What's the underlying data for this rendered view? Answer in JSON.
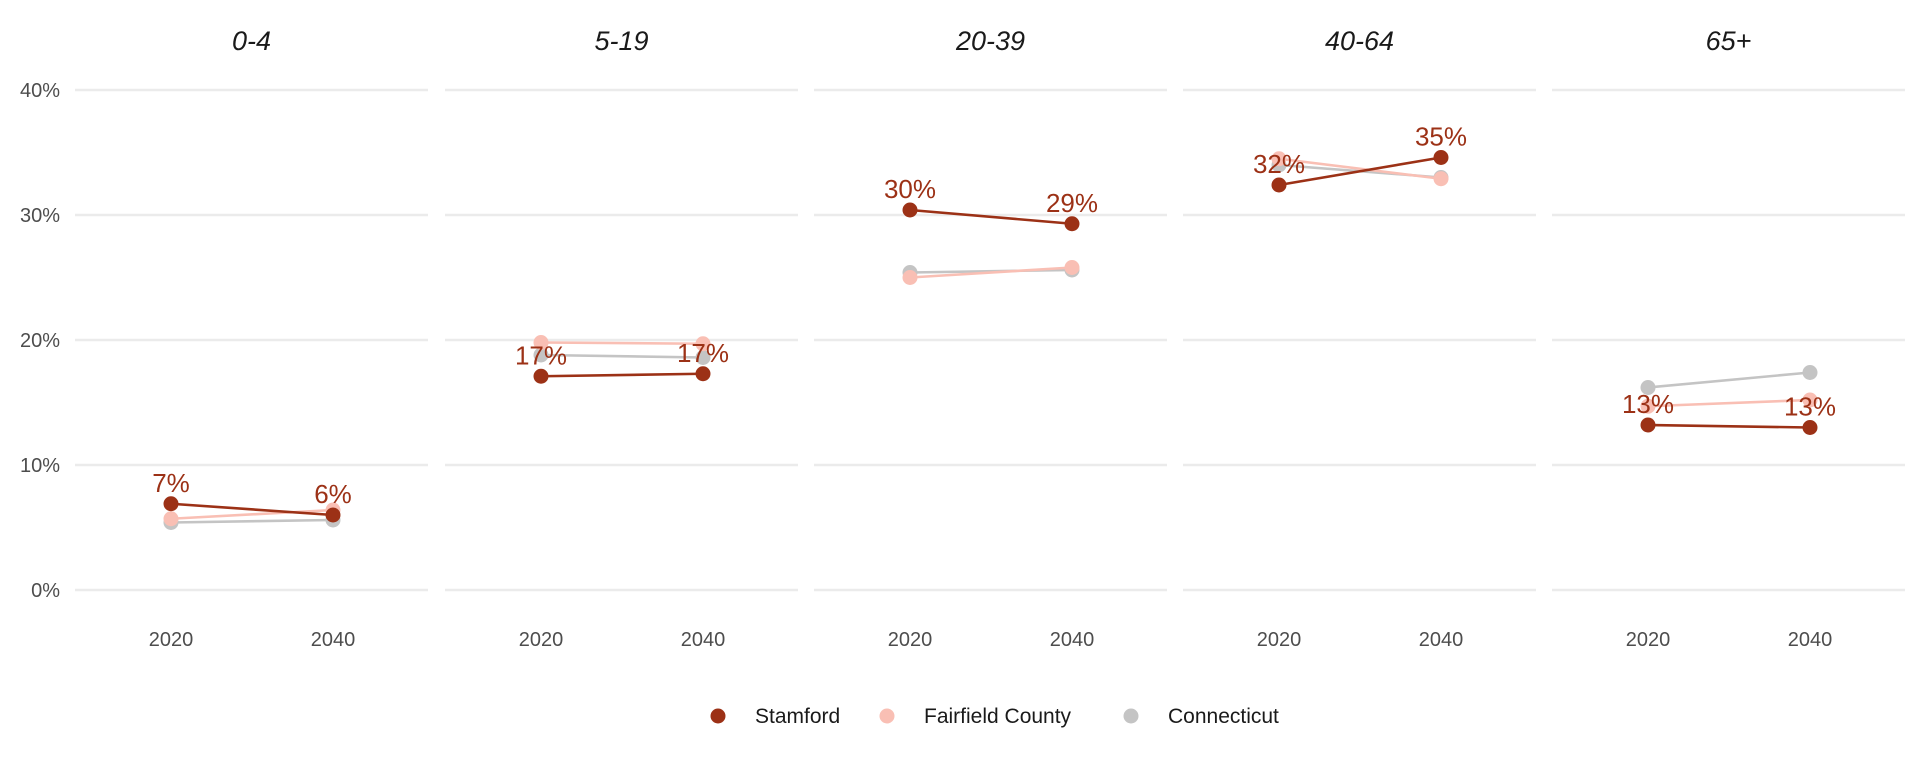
{
  "colors": {
    "stamford": "#9c3116",
    "fairfield": "#f9bfb4",
    "connecticut": "#c4c4c4",
    "grid": "#ebebeb",
    "tick_text": "#4d4d4d",
    "title_text": "#1a1a1a"
  },
  "chart_data": {
    "type": "line",
    "layout": "small-multiples",
    "ylim": [
      0,
      40
    ],
    "y_ticks": [
      "0%",
      "10%",
      "20%",
      "30%",
      "40%"
    ],
    "y_tick_values": [
      0,
      10,
      20,
      30,
      40
    ],
    "x": [
      "2020",
      "2040"
    ],
    "grid": true,
    "legend_position": "bottom",
    "labelled_series": "Stamford",
    "series_names": [
      "Stamford",
      "Fairfield County",
      "Connecticut"
    ],
    "facets": [
      {
        "title": "0-4",
        "series": [
          {
            "name": "Stamford",
            "values": [
              6.9,
              6.0
            ],
            "labels": [
              "7%",
              "6%"
            ]
          },
          {
            "name": "Fairfield County",
            "values": [
              5.7,
              6.4
            ]
          },
          {
            "name": "Connecticut",
            "values": [
              5.4,
              5.6
            ]
          }
        ]
      },
      {
        "title": "5-19",
        "series": [
          {
            "name": "Stamford",
            "values": [
              17.1,
              17.3
            ],
            "labels": [
              "17%",
              "17%"
            ]
          },
          {
            "name": "Fairfield County",
            "values": [
              19.8,
              19.7
            ]
          },
          {
            "name": "Connecticut",
            "values": [
              18.8,
              18.6
            ]
          }
        ]
      },
      {
        "title": "20-39",
        "series": [
          {
            "name": "Stamford",
            "values": [
              30.4,
              29.3
            ],
            "labels": [
              "30%",
              "29%"
            ]
          },
          {
            "name": "Fairfield County",
            "values": [
              25.0,
              25.8
            ]
          },
          {
            "name": "Connecticut",
            "values": [
              25.4,
              25.6
            ]
          }
        ]
      },
      {
        "title": "40-64",
        "series": [
          {
            "name": "Stamford",
            "values": [
              32.4,
              34.6
            ],
            "labels": [
              "32%",
              "35%"
            ]
          },
          {
            "name": "Fairfield County",
            "values": [
              34.5,
              32.9
            ]
          },
          {
            "name": "Connecticut",
            "values": [
              34.0,
              33.0
            ]
          }
        ]
      },
      {
        "title": "65+",
        "series": [
          {
            "name": "Stamford",
            "values": [
              13.2,
              13.0
            ],
            "labels": [
              "13%",
              "13%"
            ]
          },
          {
            "name": "Fairfield County",
            "values": [
              14.7,
              15.2
            ]
          },
          {
            "name": "Connecticut",
            "values": [
              16.2,
              17.4
            ]
          }
        ]
      }
    ]
  },
  "legend": {
    "items": [
      {
        "label": "Stamford",
        "color_key": "stamford"
      },
      {
        "label": "Fairfield County",
        "color_key": "fairfield"
      },
      {
        "label": "Connecticut",
        "color_key": "connecticut"
      }
    ]
  }
}
